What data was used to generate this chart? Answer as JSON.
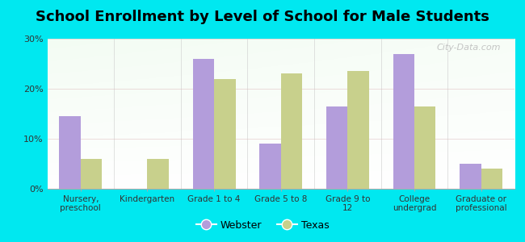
{
  "title": "School Enrollment by Level of School for Male Students",
  "categories": [
    "Nursery,\npreschool",
    "Kindergarten",
    "Grade 1 to 4",
    "Grade 5 to 8",
    "Grade 9 to\n12",
    "College\nundergrad",
    "Graduate or\nprofessional"
  ],
  "webster_values": [
    14.5,
    0,
    26.0,
    9.0,
    16.5,
    27.0,
    5.0
  ],
  "texas_values": [
    6.0,
    6.0,
    22.0,
    23.0,
    23.5,
    16.5,
    4.0
  ],
  "webster_color": "#b39ddb",
  "texas_color": "#c8d08c",
  "background_color": "#00e8f0",
  "ylim": [
    0,
    30
  ],
  "yticks": [
    0,
    10,
    20,
    30
  ],
  "ytick_labels": [
    "0%",
    "10%",
    "20%",
    "30%"
  ],
  "legend_labels": [
    "Webster",
    "Texas"
  ],
  "bar_width": 0.32,
  "title_fontsize": 13,
  "watermark_text": "City-Data.com"
}
